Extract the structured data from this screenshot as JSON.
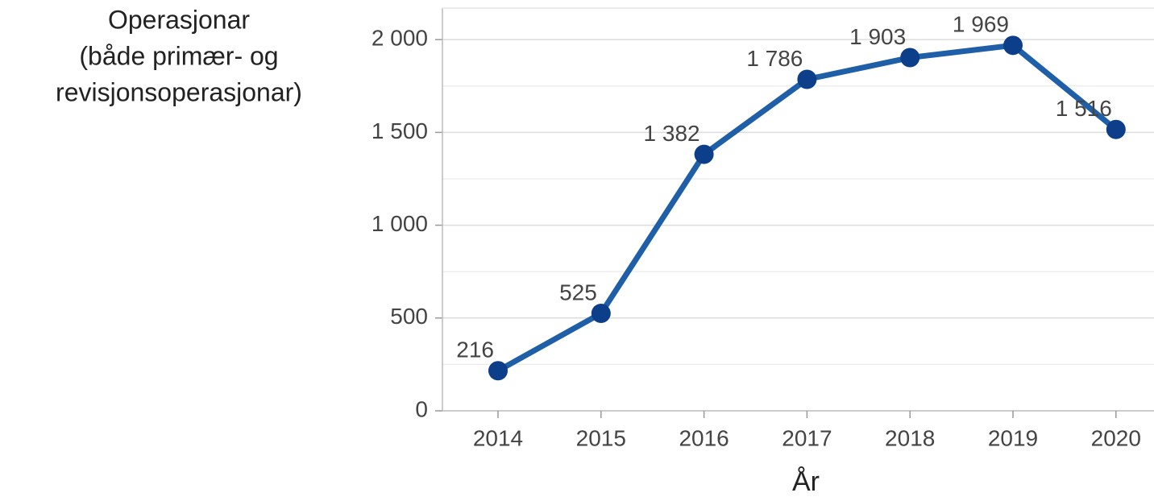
{
  "chart_data": {
    "type": "line",
    "ylabel": [
      "Operasjonar",
      "(både primær- og",
      "revisjonsoperasjonar)"
    ],
    "xlabel": "År",
    "categories": [
      "2014",
      "2015",
      "2016",
      "2017",
      "2018",
      "2019",
      "2020"
    ],
    "values": [
      216,
      525,
      1382,
      1786,
      1903,
      1969,
      1516
    ],
    "value_labels": [
      "216",
      "525",
      "1 382",
      "1 786",
      "1 903",
      "1 969",
      "1 516"
    ],
    "color": "#1f5fa8",
    "marker_color": "#0c3e8a",
    "ylim": [
      0,
      2170
    ],
    "yticks": [
      0,
      500,
      {
        "value": 1000,
        "label": "1 000"
      },
      {
        "value": 1500,
        "label": "1 500"
      },
      {
        "value": 2000,
        "label": "2 000"
      }
    ],
    "minor_yticks": [
      250,
      750,
      1250,
      1750
    ],
    "grid": true
  }
}
